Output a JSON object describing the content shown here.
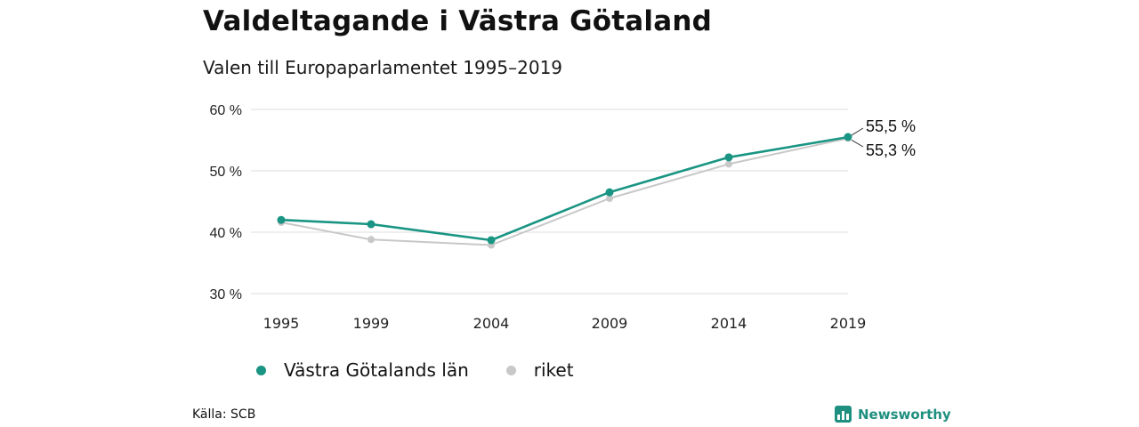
{
  "title": "Valdeltagande i Västra Götaland",
  "subtitle": "Valen till Europaparlamentet 1995–2019",
  "source": "Källa: SCB",
  "brand": "Newsworthy",
  "colors": {
    "teal": "#1a9583",
    "gray": "#c8c8c8",
    "brand": "#1f8f7f"
  },
  "chart_data": {
    "type": "line",
    "title": "Valdeltagande i Västra Götaland",
    "subtitle": "Valen till Europaparlamentet 1995–2019",
    "x": [
      "1995",
      "1999",
      "2004",
      "2009",
      "2014",
      "2019"
    ],
    "ylim": [
      30,
      60
    ],
    "yticks": [
      30,
      40,
      50,
      60
    ],
    "ytick_labels": [
      "30 %",
      "40 %",
      "50 %",
      "60 %"
    ],
    "grid": true,
    "legend_position": "bottom-left",
    "series": [
      {
        "name": "Västra Götalands län",
        "color": "#1a9583",
        "values": [
          42.0,
          41.3,
          38.7,
          46.5,
          52.2,
          55.5
        ]
      },
      {
        "name": "riket",
        "color": "#c8c8c8",
        "values": [
          41.6,
          38.8,
          37.9,
          45.5,
          51.1,
          55.3
        ]
      }
    ],
    "end_labels": [
      "55,5 %",
      "55,3 %"
    ]
  }
}
